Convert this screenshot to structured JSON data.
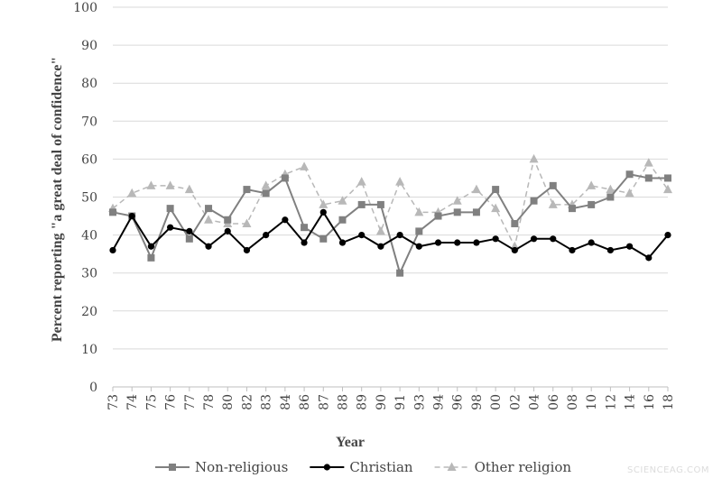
{
  "chart_data": {
    "type": "line",
    "title": "",
    "xlabel": "Year",
    "ylabel": "Percent reporting \"a great deal of confidence\"",
    "ylim": [
      0,
      100
    ],
    "yticks": [
      "0",
      "10",
      "20",
      "30",
      "40",
      "50",
      "60",
      "70",
      "80",
      "90",
      "100"
    ],
    "categories": [
      "73",
      "74",
      "75",
      "76",
      "77",
      "78",
      "80",
      "82",
      "83",
      "84",
      "86",
      "87",
      "88",
      "89",
      "90",
      "91",
      "93",
      "94",
      "96",
      "98",
      "00",
      "02",
      "04",
      "06",
      "08",
      "10",
      "12",
      "14",
      "16",
      "18"
    ],
    "grid": "horizontal",
    "legend_position": "bottom",
    "series": [
      {
        "name": "Non-religious",
        "marker": "square",
        "color": "#808080",
        "dash": "solid",
        "values": [
          46,
          45,
          34,
          47,
          39,
          47,
          44,
          52,
          51,
          55,
          42,
          39,
          44,
          48,
          48,
          30,
          41,
          45,
          46,
          46,
          52,
          43,
          49,
          53,
          47,
          48,
          50,
          56,
          55,
          55
        ]
      },
      {
        "name": "Christian",
        "marker": "circle",
        "color": "#000000",
        "dash": "solid",
        "values": [
          36,
          45,
          37,
          42,
          41,
          37,
          41,
          36,
          40,
          44,
          38,
          46,
          38,
          40,
          37,
          40,
          37,
          38,
          38,
          38,
          39,
          36,
          39,
          39,
          36,
          38,
          36,
          37,
          34,
          40
        ]
      },
      {
        "name": "Other religion",
        "marker": "triangle",
        "color": "#b8b8b8",
        "dash": "dashed",
        "values": [
          47,
          51,
          53,
          53,
          52,
          44,
          43,
          43,
          53,
          56,
          58,
          48,
          49,
          54,
          41,
          54,
          46,
          46,
          49,
          52,
          47,
          37,
          60,
          48,
          48,
          53,
          52,
          51,
          59,
          52
        ]
      }
    ]
  },
  "watermark": "SCIENCEAG.COM"
}
